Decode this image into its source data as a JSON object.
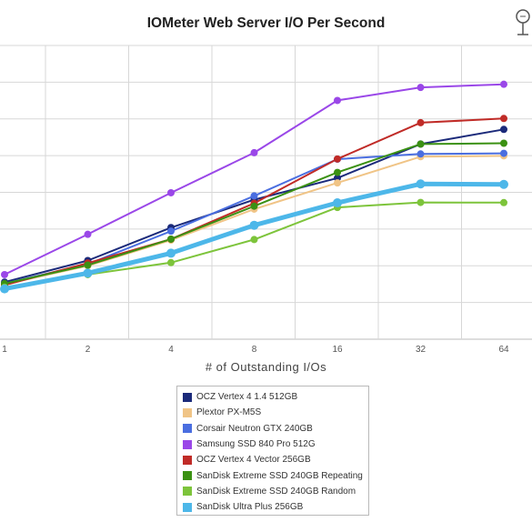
{
  "chart_data": {
    "type": "line",
    "title": "IOMeter Web Server I/O Per Second",
    "xlabel": "# of Outstanding I/Os",
    "ylabel": "",
    "categories": [
      "1",
      "2",
      "4",
      "8",
      "16",
      "32",
      "64"
    ],
    "grid": true,
    "legend_position": "bottom-center",
    "series": [
      {
        "name": "OCZ Vertex 4 1.4 512GB",
        "color": "#1b2a7a",
        "values": [
          0.272,
          0.375,
          0.532,
          0.665,
          0.768,
          0.93,
          1.0
        ]
      },
      {
        "name": "Plextor PX-M5S",
        "color": "#f0c486",
        "values": [
          0.262,
          0.35,
          0.472,
          0.62,
          0.745,
          0.87,
          0.874
        ]
      },
      {
        "name": "Corsair Neutron GTX 240GB",
        "color": "#4a6ee0",
        "values": [
          0.265,
          0.358,
          0.515,
          0.683,
          0.858,
          0.883,
          0.886
        ]
      },
      {
        "name": "Samsung SSD 840 Pro 512G",
        "color": "#9a47e8",
        "values": [
          0.308,
          0.5,
          0.698,
          0.889,
          1.138,
          1.2,
          1.215
        ]
      },
      {
        "name": "OCZ Vertex 4 Vector 256GB",
        "color": "#c02b27",
        "values": [
          0.258,
          0.363,
          0.477,
          0.648,
          0.859,
          1.032,
          1.052
        ]
      },
      {
        "name": "SanDisk Extreme SSD 240GB Repeating",
        "color": "#3b9113",
        "values": [
          0.265,
          0.353,
          0.477,
          0.634,
          0.795,
          0.93,
          0.934
        ]
      },
      {
        "name": "SanDisk Extreme SSD 240GB Random",
        "color": "#7dc43b",
        "values": [
          0.248,
          0.308,
          0.365,
          0.475,
          0.628,
          0.652,
          0.651
        ]
      },
      {
        "name": "SanDisk Ultra Plus 256GB",
        "color": "#4db7e9",
        "values": [
          0.24,
          0.315,
          0.41,
          0.543,
          0.65,
          0.74,
          0.738
        ]
      }
    ],
    "ylim": [
      0,
      1.4
    ],
    "y_tick_labels": []
  }
}
